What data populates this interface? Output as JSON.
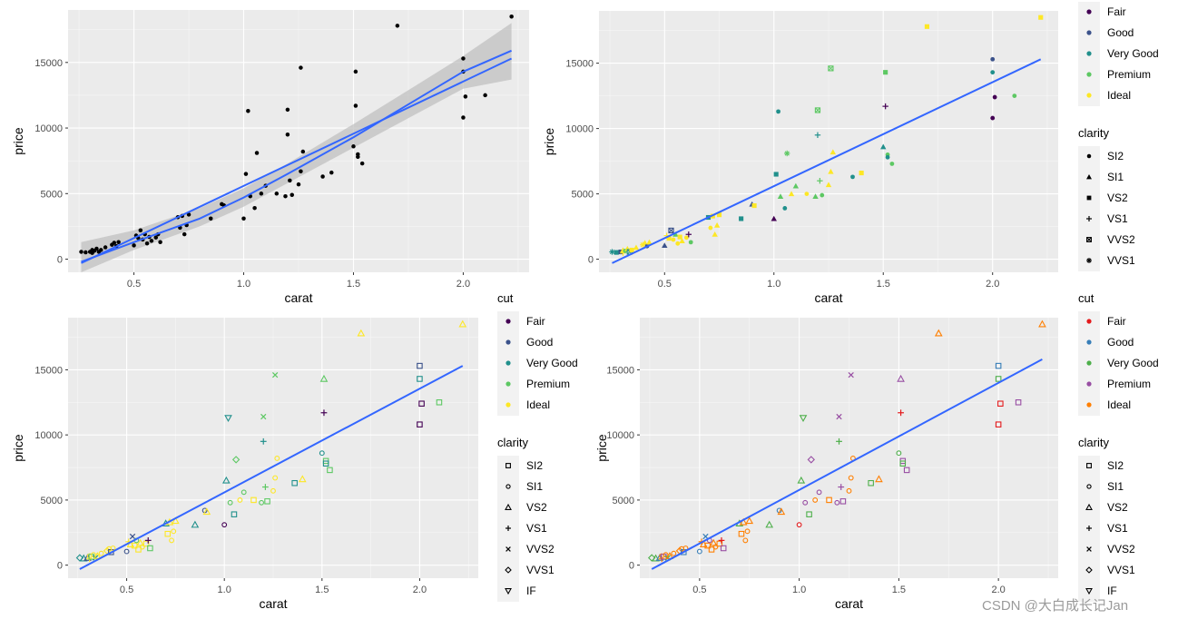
{
  "watermark": "CSDN @大白成长记Jan",
  "colors": {
    "panel_bg": "#EBEBEB",
    "grid_major": "#FFFFFF",
    "fit_line": "#3366FF",
    "ci_band": "#BEBEBE",
    "points_black": "#000000",
    "viridis": {
      "Fair": "#440154",
      "Good": "#3B528B",
      "Very Good": "#21908C",
      "Premium": "#5DC863",
      "Ideal": "#FDE725"
    },
    "set1": {
      "Fair": "#E41A1C",
      "Good": "#377EB8",
      "Very Good": "#4DAF4A",
      "Premium": "#984EA3",
      "Ideal": "#FF7F00"
    }
  },
  "legends": {
    "cut_title": "cut",
    "cut_levels": [
      "Fair",
      "Good",
      "Very Good",
      "Premium",
      "Ideal"
    ],
    "clarity_title": "clarity",
    "clarity_levels_solid": [
      "SI2",
      "SI1",
      "VS2",
      "VS1",
      "VVS2",
      "VVS1"
    ],
    "clarity_levels_hollow": [
      "SI2",
      "SI1",
      "VS2",
      "VS1",
      "VVS2",
      "VVS1",
      "IF"
    ]
  },
  "chart_data": [
    {
      "type": "scatter",
      "panel": "top-left",
      "title": "",
      "xlabel": "carat",
      "ylabel": "price",
      "xlim": [
        0.2,
        2.3
      ],
      "ylim": [
        -1000,
        19000
      ],
      "x_ticks": [
        0.5,
        1.0,
        1.5,
        2.0
      ],
      "x_tick_labels": [
        "0.5",
        "1.0",
        "1.5",
        "2.0"
      ],
      "y_ticks": [
        0,
        5000,
        10000,
        15000
      ],
      "y_tick_labels": [
        "0",
        "5000",
        "10000",
        "15000"
      ],
      "grid": true,
      "style": "black",
      "fit": {
        "type": "loess+lm",
        "ci": true
      }
    },
    {
      "type": "scatter",
      "panel": "top-right",
      "title": "",
      "xlabel": "carat",
      "ylabel": "price",
      "xlim": [
        0.2,
        2.3
      ],
      "ylim": [
        -1000,
        19000
      ],
      "x_ticks": [
        0.5,
        1.0,
        1.5,
        2.0
      ],
      "x_tick_labels": [
        "0.5",
        "1.0",
        "1.5",
        "2.0"
      ],
      "y_ticks": [
        0,
        5000,
        10000,
        15000
      ],
      "y_tick_labels": [
        "0",
        "5000",
        "10000",
        "15000"
      ],
      "grid": true,
      "style": "viridis-solid",
      "legend_position": "right",
      "fit": {
        "type": "lm",
        "ci": false
      }
    },
    {
      "type": "scatter",
      "panel": "bottom-left",
      "title": "",
      "xlabel": "carat",
      "ylabel": "price",
      "xlim": [
        0.2,
        2.3
      ],
      "ylim": [
        -1000,
        19000
      ],
      "x_ticks": [
        0.5,
        1.0,
        1.5,
        2.0
      ],
      "x_tick_labels": [
        "0.5",
        "1.0",
        "1.5",
        "2.0"
      ],
      "y_ticks": [
        0,
        5000,
        10000,
        15000
      ],
      "y_tick_labels": [
        "0",
        "5000",
        "10000",
        "15000"
      ],
      "grid": true,
      "style": "viridis-hollow",
      "legend_position": "right",
      "fit": {
        "type": "lm",
        "ci": false
      }
    },
    {
      "type": "scatter",
      "panel": "bottom-right",
      "title": "",
      "xlabel": "carat",
      "ylabel": "price",
      "xlim": [
        0.2,
        2.3
      ],
      "ylim": [
        -1000,
        19000
      ],
      "x_ticks": [
        0.5,
        1.0,
        1.5,
        2.0
      ],
      "x_tick_labels": [
        "0.5",
        "1.0",
        "1.5",
        "2.0"
      ],
      "y_ticks": [
        0,
        5000,
        10000,
        15000
      ],
      "y_tick_labels": [
        "0",
        "5000",
        "10000",
        "15000"
      ],
      "grid": true,
      "style": "set1-hollow",
      "legend_position": "right",
      "fit": {
        "type": "lm",
        "ci": false
      }
    }
  ],
  "points": [
    {
      "carat": 0.26,
      "price": 560,
      "cut": "Very Good",
      "clarity": "VVS1"
    },
    {
      "carat": 0.28,
      "price": 520,
      "cut": "Very Good",
      "clarity": "VS2"
    },
    {
      "carat": 0.3,
      "price": 560,
      "cut": "Good",
      "clarity": "VS2"
    },
    {
      "carat": 0.31,
      "price": 700,
      "cut": "Ideal",
      "clarity": "SI1"
    },
    {
      "carat": 0.31,
      "price": 480,
      "cut": "Ideal",
      "clarity": "VS1"
    },
    {
      "carat": 0.32,
      "price": 640,
      "cut": "Premium",
      "clarity": "SI2"
    },
    {
      "carat": 0.33,
      "price": 800,
      "cut": "Ideal",
      "clarity": "SI1"
    },
    {
      "carat": 0.34,
      "price": 560,
      "cut": "Very Good",
      "clarity": "VVS2"
    },
    {
      "carat": 0.35,
      "price": 700,
      "cut": "Ideal",
      "clarity": "VS2"
    },
    {
      "carat": 0.37,
      "price": 900,
      "cut": "Ideal",
      "clarity": "SI1"
    },
    {
      "carat": 0.4,
      "price": 1100,
      "cut": "Ideal",
      "clarity": "VVS1"
    },
    {
      "carat": 0.41,
      "price": 1250,
      "cut": "Ideal",
      "clarity": "SI1"
    },
    {
      "carat": 0.42,
      "price": 1000,
      "cut": "Good",
      "clarity": "SI2"
    },
    {
      "carat": 0.43,
      "price": 1300,
      "cut": "Ideal",
      "clarity": "SI1"
    },
    {
      "carat": 0.5,
      "price": 1050,
      "cut": "Good",
      "clarity": "SI1"
    },
    {
      "carat": 0.51,
      "price": 1800,
      "cut": "Ideal",
      "clarity": "VS1"
    },
    {
      "carat": 0.52,
      "price": 1600,
      "cut": "Ideal",
      "clarity": "VS2"
    },
    {
      "carat": 0.53,
      "price": 2200,
      "cut": "Good",
      "clarity": "VVS2"
    },
    {
      "carat": 0.54,
      "price": 1500,
      "cut": "Ideal",
      "clarity": "SI2"
    },
    {
      "carat": 0.55,
      "price": 1900,
      "cut": "Premium",
      "clarity": "SI1"
    },
    {
      "carat": 0.56,
      "price": 1200,
      "cut": "Ideal",
      "clarity": "SI2"
    },
    {
      "carat": 0.57,
      "price": 1700,
      "cut": "Ideal",
      "clarity": "VS2"
    },
    {
      "carat": 0.58,
      "price": 1400,
      "cut": "Ideal",
      "clarity": "SI1"
    },
    {
      "carat": 0.6,
      "price": 1650,
      "cut": "Ideal",
      "clarity": "SI2"
    },
    {
      "carat": 0.61,
      "price": 1900,
      "cut": "Fair",
      "clarity": "VS1"
    },
    {
      "carat": 0.62,
      "price": 1300,
      "cut": "Premium",
      "clarity": "SI2"
    },
    {
      "carat": 0.7,
      "price": 3200,
      "cut": "Very Good",
      "clarity": "VS2"
    },
    {
      "carat": 0.71,
      "price": 2400,
      "cut": "Ideal",
      "clarity": "SI2"
    },
    {
      "carat": 0.72,
      "price": 3300,
      "cut": "Ideal",
      "clarity": "VS2"
    },
    {
      "carat": 0.73,
      "price": 1900,
      "cut": "Ideal",
      "clarity": "SI1"
    },
    {
      "carat": 0.74,
      "price": 2600,
      "cut": "Ideal",
      "clarity": "SI1"
    },
    {
      "carat": 0.75,
      "price": 3400,
      "cut": "Ideal",
      "clarity": "VS2"
    },
    {
      "carat": 0.85,
      "price": 3100,
      "cut": "Very Good",
      "clarity": "VS2"
    },
    {
      "carat": 0.9,
      "price": 4200,
      "cut": "Good",
      "clarity": "SI1"
    },
    {
      "carat": 0.91,
      "price": 4100,
      "cut": "Ideal",
      "clarity": "VS2"
    },
    {
      "carat": 1.0,
      "price": 3100,
      "cut": "Fair",
      "clarity": "SI1"
    },
    {
      "carat": 1.01,
      "price": 6500,
      "cut": "Very Good",
      "clarity": "VS2"
    },
    {
      "carat": 1.02,
      "price": 11300,
      "cut": "Very Good",
      "clarity": "IF"
    },
    {
      "carat": 1.03,
      "price": 4800,
      "cut": "Premium",
      "clarity": "SI1"
    },
    {
      "carat": 1.05,
      "price": 3900,
      "cut": "Very Good",
      "clarity": "SI2"
    },
    {
      "carat": 1.06,
      "price": 8100,
      "cut": "Premium",
      "clarity": "VVS1"
    },
    {
      "carat": 1.08,
      "price": 5000,
      "cut": "Ideal",
      "clarity": "SI1"
    },
    {
      "carat": 1.1,
      "price": 5600,
      "cut": "Premium",
      "clarity": "SI1"
    },
    {
      "carat": 1.15,
      "price": 5000,
      "cut": "Ideal",
      "clarity": "SI2"
    },
    {
      "carat": 1.19,
      "price": 4800,
      "cut": "Premium",
      "clarity": "SI1"
    },
    {
      "carat": 1.2,
      "price": 9500,
      "cut": "Very Good",
      "clarity": "VS1"
    },
    {
      "carat": 1.2,
      "price": 11400,
      "cut": "Premium",
      "clarity": "VVS2"
    },
    {
      "carat": 1.21,
      "price": 6000,
      "cut": "Premium",
      "clarity": "VS1"
    },
    {
      "carat": 1.22,
      "price": 4900,
      "cut": "Premium",
      "clarity": "SI2"
    },
    {
      "carat": 1.25,
      "price": 5700,
      "cut": "Ideal",
      "clarity": "SI1"
    },
    {
      "carat": 1.26,
      "price": 14600,
      "cut": "Premium",
      "clarity": "VVS2"
    },
    {
      "carat": 1.26,
      "price": 6700,
      "cut": "Ideal",
      "clarity": "SI1"
    },
    {
      "carat": 1.27,
      "price": 8200,
      "cut": "Ideal",
      "clarity": "SI1"
    },
    {
      "carat": 1.36,
      "price": 6300,
      "cut": "Very Good",
      "clarity": "SI2"
    },
    {
      "carat": 1.4,
      "price": 6600,
      "cut": "Ideal",
      "clarity": "VS2"
    },
    {
      "carat": 1.5,
      "price": 8600,
      "cut": "Very Good",
      "clarity": "SI1"
    },
    {
      "carat": 1.51,
      "price": 11700,
      "cut": "Fair",
      "clarity": "VS1"
    },
    {
      "carat": 1.51,
      "price": 14300,
      "cut": "Premium",
      "clarity": "VS2"
    },
    {
      "carat": 1.52,
      "price": 8000,
      "cut": "Premium",
      "clarity": "SI2"
    },
    {
      "carat": 1.52,
      "price": 7800,
      "cut": "Very Good",
      "clarity": "SI2"
    },
    {
      "carat": 1.54,
      "price": 7300,
      "cut": "Premium",
      "clarity": "SI2"
    },
    {
      "carat": 1.7,
      "price": 17800,
      "cut": "Ideal",
      "clarity": "VS2"
    },
    {
      "carat": 2.0,
      "price": 15300,
      "cut": "Good",
      "clarity": "SI2"
    },
    {
      "carat": 2.0,
      "price": 14300,
      "cut": "Very Good",
      "clarity": "SI2"
    },
    {
      "carat": 2.0,
      "price": 10800,
      "cut": "Fair",
      "clarity": "SI2"
    },
    {
      "carat": 2.01,
      "price": 12400,
      "cut": "Fair",
      "clarity": "SI2"
    },
    {
      "carat": 2.1,
      "price": 12500,
      "cut": "Premium",
      "clarity": "SI2"
    },
    {
      "carat": 2.22,
      "price": 18500,
      "cut": "Ideal",
      "clarity": "VS2"
    }
  ],
  "fit_lines": {
    "lm": [
      [
        0.26,
        -300
      ],
      [
        2.22,
        15300
      ]
    ],
    "lm_br": [
      [
        0.26,
        -300
      ],
      [
        2.22,
        15800
      ]
    ],
    "loess": [
      [
        0.26,
        -200
      ],
      [
        0.5,
        1300
      ],
      [
        0.8,
        3100
      ],
      [
        1.0,
        4700
      ],
      [
        1.2,
        6500
      ],
      [
        1.5,
        9300
      ],
      [
        1.8,
        12300
      ],
      [
        2.0,
        14300
      ],
      [
        2.22,
        15900
      ]
    ],
    "ci_upper": [
      [
        0.26,
        1300
      ],
      [
        0.5,
        2200
      ],
      [
        0.8,
        3900
      ],
      [
        1.0,
        5400
      ],
      [
        1.2,
        7300
      ],
      [
        1.5,
        10300
      ],
      [
        1.8,
        13400
      ],
      [
        2.0,
        15500
      ],
      [
        2.22,
        18000
      ]
    ],
    "ci_lower": [
      [
        0.26,
        -1000
      ],
      [
        0.5,
        700
      ],
      [
        0.8,
        2500
      ],
      [
        1.0,
        4000
      ],
      [
        1.2,
        5800
      ],
      [
        1.5,
        8500
      ],
      [
        1.8,
        11200
      ],
      [
        2.0,
        13000
      ],
      [
        2.22,
        13700
      ]
    ]
  }
}
